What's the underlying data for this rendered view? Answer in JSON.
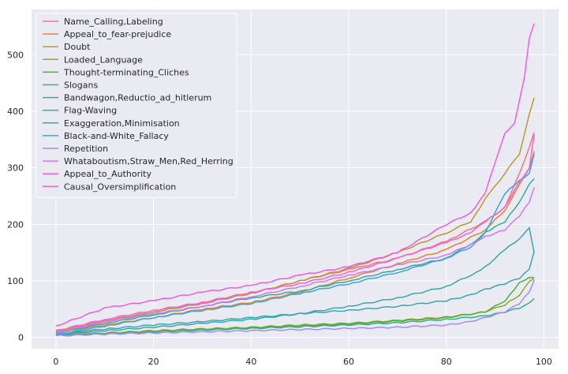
{
  "chart_data": {
    "type": "line",
    "title": "",
    "xlabel": "",
    "ylabel": "",
    "xlim": [
      -5,
      103
    ],
    "ylim": [
      -20,
      580
    ],
    "xticks": [
      0,
      20,
      40,
      60,
      80,
      100
    ],
    "yticks": [
      0,
      100,
      200,
      300,
      400,
      500
    ],
    "grid": true,
    "legend_position": "top-left",
    "series": [
      {
        "name": "Name_Calling,Labeling",
        "color": "#f77189",
        "anchors": [
          [
            0,
            12
          ],
          [
            10,
            30
          ],
          [
            20,
            45
          ],
          [
            30,
            60
          ],
          [
            40,
            78
          ],
          [
            50,
            100
          ],
          [
            60,
            120
          ],
          [
            70,
            140
          ],
          [
            80,
            170
          ],
          [
            88,
            205
          ],
          [
            92,
            230
          ],
          [
            95,
            290
          ],
          [
            97,
            335
          ],
          [
            98,
            362
          ]
        ]
      },
      {
        "name": "Appeal_to_fear-prejudice",
        "color": "#e68332",
        "anchors": [
          [
            0,
            8
          ],
          [
            10,
            22
          ],
          [
            20,
            35
          ],
          [
            30,
            50
          ],
          [
            40,
            62
          ],
          [
            50,
            80
          ],
          [
            60,
            105
          ],
          [
            70,
            130
          ],
          [
            80,
            155
          ],
          [
            88,
            190
          ],
          [
            92,
            225
          ],
          [
            95,
            270
          ],
          [
            97,
            300
          ],
          [
            98,
            330
          ]
        ]
      },
      {
        "name": "Doubt",
        "color": "#bb9832",
        "anchors": [
          [
            0,
            10
          ],
          [
            10,
            28
          ],
          [
            20,
            45
          ],
          [
            30,
            62
          ],
          [
            40,
            78
          ],
          [
            50,
            100
          ],
          [
            60,
            122
          ],
          [
            70,
            150
          ],
          [
            80,
            185
          ],
          [
            85,
            205
          ],
          [
            88,
            245
          ],
          [
            92,
            290
          ],
          [
            95,
            325
          ],
          [
            97,
            395
          ],
          [
            98,
            425
          ]
        ]
      },
      {
        "name": "Loaded_Language",
        "color": "#97a431",
        "anchors": [
          [
            0,
            5
          ],
          [
            10,
            8
          ],
          [
            20,
            12
          ],
          [
            30,
            15
          ],
          [
            40,
            18
          ],
          [
            50,
            22
          ],
          [
            60,
            25
          ],
          [
            70,
            30
          ],
          [
            80,
            36
          ],
          [
            88,
            45
          ],
          [
            92,
            58
          ],
          [
            95,
            75
          ],
          [
            97,
            100
          ],
          [
            98,
            105
          ]
        ]
      },
      {
        "name": "Thought-terminating_Cliches",
        "color": "#50b131",
        "anchors": [
          [
            0,
            3
          ],
          [
            10,
            6
          ],
          [
            20,
            10
          ],
          [
            30,
            14
          ],
          [
            40,
            17
          ],
          [
            50,
            20
          ],
          [
            60,
            24
          ],
          [
            70,
            29
          ],
          [
            80,
            35
          ],
          [
            88,
            45
          ],
          [
            92,
            65
          ],
          [
            95,
            97
          ],
          [
            97,
            105
          ],
          [
            98,
            107
          ]
        ]
      },
      {
        "name": "Slogans",
        "color": "#34ae91",
        "anchors": [
          [
            0,
            4
          ],
          [
            10,
            7
          ],
          [
            20,
            10
          ],
          [
            30,
            13
          ],
          [
            40,
            16
          ],
          [
            50,
            19
          ],
          [
            60,
            22
          ],
          [
            70,
            26
          ],
          [
            80,
            32
          ],
          [
            88,
            38
          ],
          [
            92,
            45
          ],
          [
            95,
            52
          ],
          [
            97,
            60
          ],
          [
            98,
            70
          ]
        ]
      },
      {
        "name": "Bandwagon,Reductio_ad_hitlerum",
        "color": "#37aa9c",
        "anchors": [
          [
            0,
            8
          ],
          [
            10,
            25
          ],
          [
            20,
            40
          ],
          [
            30,
            55
          ],
          [
            40,
            70
          ],
          [
            50,
            82
          ],
          [
            60,
            100
          ],
          [
            70,
            120
          ],
          [
            80,
            140
          ],
          [
            85,
            165
          ],
          [
            88,
            185
          ],
          [
            92,
            205
          ],
          [
            95,
            240
          ],
          [
            97,
            270
          ],
          [
            98,
            280
          ]
        ]
      },
      {
        "name": "Flag-Waving",
        "color": "#38a8a5",
        "anchors": [
          [
            0,
            5
          ],
          [
            10,
            12
          ],
          [
            20,
            18
          ],
          [
            30,
            25
          ],
          [
            40,
            32
          ],
          [
            50,
            42
          ],
          [
            60,
            55
          ],
          [
            70,
            70
          ],
          [
            80,
            90
          ],
          [
            85,
            110
          ],
          [
            88,
            125
          ],
          [
            92,
            155
          ],
          [
            95,
            175
          ],
          [
            97,
            195
          ],
          [
            98,
            150
          ]
        ]
      },
      {
        "name": "Exaggeration,Minimisation",
        "color": "#39a7b0",
        "anchors": [
          [
            0,
            6
          ],
          [
            10,
            15
          ],
          [
            20,
            22
          ],
          [
            30,
            28
          ],
          [
            40,
            35
          ],
          [
            50,
            42
          ],
          [
            60,
            48
          ],
          [
            70,
            55
          ],
          [
            80,
            65
          ],
          [
            85,
            75
          ],
          [
            88,
            85
          ],
          [
            92,
            95
          ],
          [
            95,
            105
          ],
          [
            97,
            120
          ],
          [
            98,
            152
          ]
        ]
      },
      {
        "name": "Black-and-White_Fallacy",
        "color": "#3ba3ec",
        "anchors": [
          [
            0,
            5
          ],
          [
            10,
            20
          ],
          [
            20,
            35
          ],
          [
            30,
            48
          ],
          [
            40,
            60
          ],
          [
            50,
            78
          ],
          [
            60,
            95
          ],
          [
            70,
            115
          ],
          [
            80,
            140
          ],
          [
            85,
            160
          ],
          [
            88,
            185
          ],
          [
            92,
            255
          ],
          [
            95,
            278
          ],
          [
            97,
            290
          ],
          [
            98,
            325
          ]
        ]
      },
      {
        "name": "Repetition",
        "color": "#a48cf4",
        "anchors": [
          [
            0,
            3
          ],
          [
            10,
            6
          ],
          [
            20,
            8
          ],
          [
            30,
            10
          ],
          [
            40,
            12
          ],
          [
            50,
            14
          ],
          [
            60,
            16
          ],
          [
            70,
            18
          ],
          [
            80,
            22
          ],
          [
            85,
            28
          ],
          [
            88,
            35
          ],
          [
            92,
            45
          ],
          [
            95,
            60
          ],
          [
            97,
            80
          ],
          [
            98,
            100
          ]
        ]
      },
      {
        "name": "Whataboutism,Straw_Men,Red_Herring",
        "color": "#cc7af4",
        "anchors": [
          [
            0,
            8
          ],
          [
            10,
            28
          ],
          [
            20,
            42
          ],
          [
            30,
            55
          ],
          [
            40,
            72
          ],
          [
            50,
            90
          ],
          [
            60,
            110
          ],
          [
            70,
            128
          ],
          [
            80,
            145
          ],
          [
            85,
            165
          ],
          [
            88,
            178
          ],
          [
            92,
            190
          ],
          [
            95,
            215
          ],
          [
            97,
            240
          ],
          [
            98,
            265
          ]
        ]
      },
      {
        "name": "Appeal_to_Authority",
        "color": "#f45cdb",
        "anchors": [
          [
            0,
            20
          ],
          [
            10,
            52
          ],
          [
            20,
            65
          ],
          [
            30,
            80
          ],
          [
            40,
            92
          ],
          [
            50,
            110
          ],
          [
            60,
            125
          ],
          [
            70,
            150
          ],
          [
            80,
            200
          ],
          [
            85,
            220
          ],
          [
            88,
            255
          ],
          [
            90,
            310
          ],
          [
            92,
            360
          ],
          [
            94,
            380
          ],
          [
            95,
            420
          ],
          [
            96,
            460
          ],
          [
            97,
            530
          ],
          [
            98,
            555
          ]
        ]
      },
      {
        "name": "Causal_Oversimplification",
        "color": "#f565cc",
        "anchors": [
          [
            0,
            12
          ],
          [
            10,
            32
          ],
          [
            20,
            48
          ],
          [
            30,
            62
          ],
          [
            40,
            80
          ],
          [
            50,
            95
          ],
          [
            60,
            115
          ],
          [
            70,
            140
          ],
          [
            80,
            168
          ],
          [
            85,
            185
          ],
          [
            88,
            205
          ],
          [
            92,
            230
          ],
          [
            95,
            275
          ],
          [
            97,
            300
          ],
          [
            98,
            360
          ]
        ]
      }
    ]
  }
}
